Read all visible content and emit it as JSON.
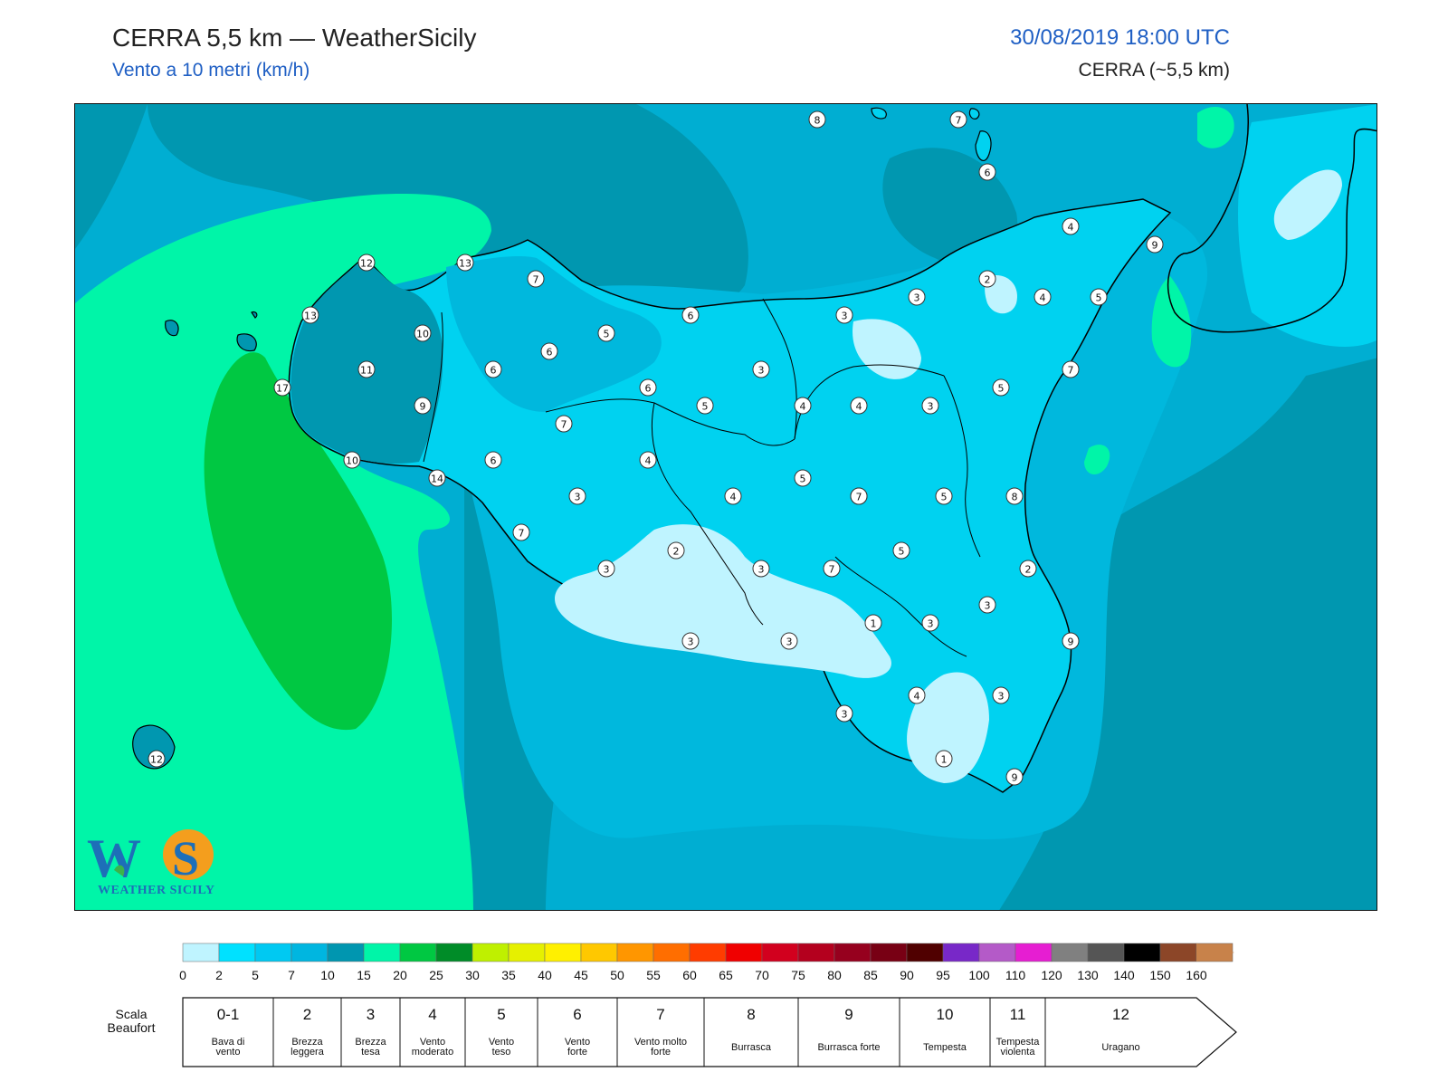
{
  "header": {
    "title": "CERRA 5,5 km — WeatherSicily",
    "subtitle": "Vento a 10 metri (km/h)",
    "datetime": "30/08/2019 18:00 UTC",
    "model": "CERRA (~5,5 km)"
  },
  "logo": {
    "text": "WEATHER SICILY",
    "mark": "WS"
  },
  "colors": {
    "sea_dark": "#0097b0",
    "sea_mid": "#00aed2",
    "sea_light": "#00c3e8",
    "land_base": "#00d2f0",
    "calm": "#bff4ff",
    "mint": "#00f5a8",
    "green": "#00c842",
    "coast": "#000000"
  },
  "stations": [
    8,
    7,
    6,
    4,
    9,
    13,
    12,
    7,
    13,
    6,
    3,
    3,
    2,
    4,
    5,
    10,
    6,
    5,
    11,
    6,
    3,
    7,
    17,
    9,
    6,
    5,
    4,
    4,
    3,
    5,
    7,
    10,
    6,
    4,
    14,
    5,
    3,
    4,
    5,
    7,
    5,
    8,
    7,
    2,
    7,
    2,
    3,
    3,
    7,
    3,
    1,
    3,
    3,
    3,
    9,
    3,
    4,
    3,
    1,
    9,
    12
  ],
  "legend": {
    "colorbar": {
      "ticks": [
        "0",
        "2",
        "5",
        "7",
        "10",
        "15",
        "20",
        "25",
        "30",
        "35",
        "40",
        "45",
        "50",
        "55",
        "60",
        "65",
        "70",
        "75",
        "80",
        "85",
        "90",
        "95",
        "100",
        "110",
        "120",
        "130",
        "140",
        "150",
        "160"
      ],
      "colors": [
        "#bff4ff",
        "#00e1ff",
        "#00c9f2",
        "#00b6e0",
        "#0096b0",
        "#00f5a8",
        "#00c842",
        "#008c28",
        "#bff000",
        "#e6f000",
        "#fff000",
        "#ffc800",
        "#ff9600",
        "#ff6e00",
        "#ff3c00",
        "#f00000",
        "#d2001e",
        "#b4001e",
        "#96001e",
        "#780014",
        "#500000",
        "#7828c8",
        "#b45ac8",
        "#e61ed2",
        "#808080",
        "#555555",
        "#000000",
        "#8c4628",
        "#c8824a"
      ]
    },
    "beaufort": {
      "label": "Scala Beaufort",
      "scale": [
        {
          "n": "0-1",
          "desc": "Bava di vento"
        },
        {
          "n": "2",
          "desc": "Brezza leggera"
        },
        {
          "n": "3",
          "desc": "Brezza tesa"
        },
        {
          "n": "4",
          "desc": "Vento moderato"
        },
        {
          "n": "5",
          "desc": "Vento teso"
        },
        {
          "n": "6",
          "desc": "Vento forte"
        },
        {
          "n": "7",
          "desc": "Vento molto forte"
        },
        {
          "n": "8",
          "desc": "Burrasca"
        },
        {
          "n": "9",
          "desc": "Burrasca forte"
        },
        {
          "n": "10",
          "desc": "Tempesta"
        },
        {
          "n": "11",
          "desc": "Tempesta violenta"
        },
        {
          "n": "12",
          "desc": "Uragano"
        }
      ]
    }
  }
}
